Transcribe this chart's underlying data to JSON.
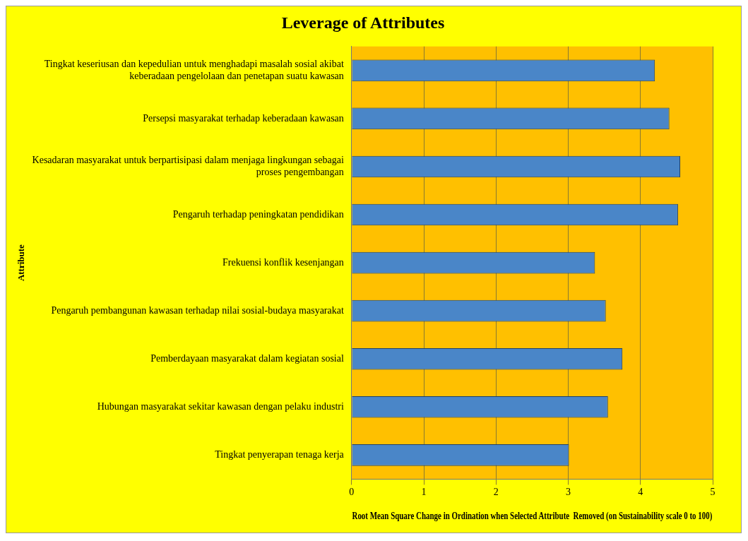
{
  "chart_data": {
    "type": "bar",
    "orientation": "horizontal",
    "title": "Leverage of Attributes",
    "xlabel": "Root Mean Square Change in Ordination when Selected Attribute  Removed (on Sustainability scale 0 to 100)",
    "ylabel": "Attribute",
    "categories": [
      "Tingkat keseriusan dan kepedulian untuk menghadapi masalah sosial akibat keberadaan pengelolaan dan penetapan suatu kawasan",
      "Persepsi masyarakat terhadap keberadaan kawasan",
      "Kesadaran masyarakat untuk berpartisipasi dalam menjaga lingkungan sebagai proses pengembangan",
      "Pengaruh terhadap peningkatan pendidikan",
      "Frekuensi konflik kesenjangan",
      "Pengaruh pembangunan kawasan terhadap nilai sosial-budaya masyarakat",
      "Pemberdayaan masyarakat dalam kegiatan sosial",
      "Hubungan masyarakat sekitar kawasan dengan pelaku industri",
      "Tingkat penyerapan tenaga kerja"
    ],
    "values": [
      4.2,
      4.4,
      4.55,
      4.52,
      3.37,
      3.52,
      3.75,
      3.55,
      3.01
    ],
    "color": "#4a86c8",
    "xlim": [
      0,
      5
    ],
    "xticks": [
      0,
      1,
      2,
      3,
      4,
      5
    ],
    "grid": "x",
    "legend": false
  }
}
